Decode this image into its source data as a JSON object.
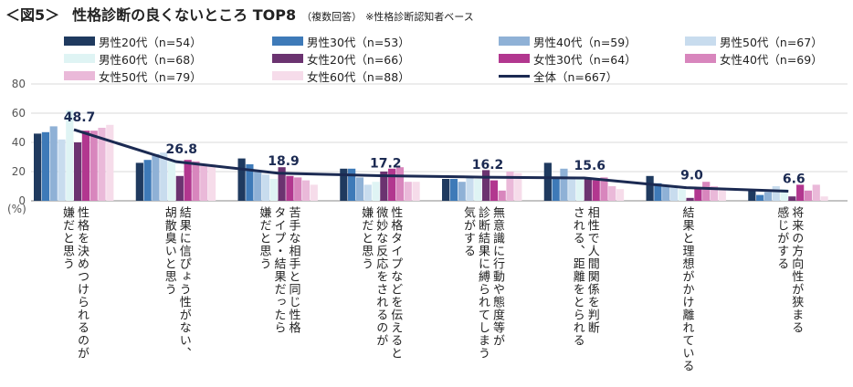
{
  "header": {
    "figure_label": "＜図5＞",
    "title": "性格診断の良くないところ TOP8",
    "subtitle": "（複数回答）",
    "note": "※性格診断認知者ベース"
  },
  "chart_data": {
    "type": "bar",
    "unit_label": "(%)",
    "ylim": [
      0,
      80
    ],
    "yticks": [
      "0",
      "20",
      "40",
      "60",
      "80"
    ],
    "categories": [
      "性格を決めつけられるのが\n嫌だと思う",
      "結果に信ぴょう性がない、\n胡散臭いと思う",
      "苦手な相手と同じ性格\nタイプ・結果だったら\n嫌だと思う",
      "性格タイプなどを伝えると\n微妙な反応をされるのが\n嫌だと思う",
      "無意識に行動や態度等が\n診断結果に縛られてしまう\n気がする",
      "相性で人間関係を判断\nされる、距離をとられる",
      "結果と理想がかけ離れている",
      "将来の方向性が狭まる\n感じがする"
    ],
    "series": [
      {
        "name": "男性20代（n=54）",
        "color": "#1f3a5f",
        "values": [
          46,
          26,
          29,
          22,
          15,
          26,
          17,
          8
        ]
      },
      {
        "name": "男性30代（n=53）",
        "color": "#3e7ab8",
        "values": [
          47,
          28,
          25,
          22,
          15,
          15,
          12,
          4
        ]
      },
      {
        "name": "男性40代（n=59）",
        "color": "#8fb1d6",
        "values": [
          51,
          32,
          20,
          16,
          13,
          22,
          10,
          6
        ]
      },
      {
        "name": "男性50代（n=67）",
        "color": "#c8dcee",
        "values": [
          42,
          33,
          18,
          11,
          17,
          16,
          9,
          10
        ]
      },
      {
        "name": "男性60代（n=68）",
        "color": "#dff4f4",
        "values": [
          62,
          28,
          15,
          13,
          15,
          15,
          8,
          8
        ]
      },
      {
        "name": "女性20代（n=66）",
        "color": "#6b3370",
        "values": [
          40,
          17,
          23,
          20,
          21,
          15,
          2,
          3
        ]
      },
      {
        "name": "女性30代（n=64）",
        "color": "#b2378f",
        "values": [
          48,
          28,
          17,
          22,
          14,
          14,
          9,
          11
        ]
      },
      {
        "name": "女性40代（n=69）",
        "color": "#d886bd",
        "values": [
          48,
          27,
          16,
          23,
          7,
          16,
          13,
          7
        ]
      },
      {
        "name": "女性50代（n=79）",
        "color": "#eab9d9",
        "values": [
          50,
          25,
          14,
          13,
          20,
          10,
          10,
          11
        ]
      },
      {
        "name": "女性60代（n=88）",
        "color": "#f6dcea",
        "values": [
          52,
          25,
          11,
          13,
          19,
          8,
          9,
          3
        ]
      }
    ],
    "total": {
      "name": "全体（n=667）",
      "color": "#1b2a52",
      "values": [
        48.7,
        26.8,
        18.9,
        17.2,
        16.2,
        15.6,
        9.0,
        6.6
      ],
      "labels": [
        "48.7",
        "26.8",
        "18.9",
        "17.2",
        "16.2",
        "15.6",
        "9.0",
        "6.6"
      ]
    }
  }
}
